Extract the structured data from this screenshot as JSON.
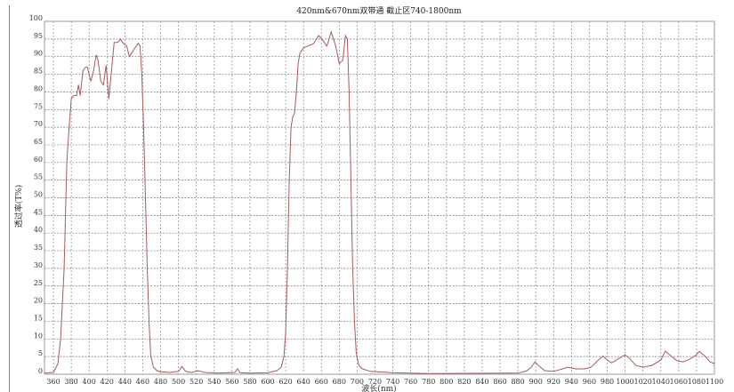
{
  "chart_data": {
    "type": "line",
    "title": "420nm&670nm双带通 截止区740-1800nm",
    "xlabel": "波长(nm)",
    "ylabel": "透过率(T%)",
    "xlim": [
      350,
      1100
    ],
    "ylim": [
      0,
      100
    ],
    "xticks": [
      360,
      380,
      400,
      420,
      440,
      460,
      480,
      500,
      520,
      540,
      560,
      580,
      600,
      620,
      640,
      660,
      680,
      700,
      720,
      740,
      760,
      780,
      800,
      820,
      840,
      860,
      880,
      900,
      920,
      940,
      960,
      980,
      1000,
      1020,
      1040,
      1060,
      1080,
      1100
    ],
    "yticks": [
      0,
      5,
      10,
      15,
      20,
      25,
      30,
      35,
      40,
      45,
      50,
      55,
      60,
      65,
      70,
      75,
      80,
      85,
      90,
      95,
      100
    ],
    "grid": true,
    "line_color": "#a85a5a",
    "series": [
      {
        "x": [
          350,
          360,
          365,
          368,
          372,
          375,
          377,
          380,
          383,
          386,
          388,
          390,
          393,
          396,
          398,
          402,
          405,
          408,
          410,
          413,
          416,
          419,
          422,
          425,
          428,
          432,
          435,
          438,
          442,
          445,
          450,
          455,
          457,
          459,
          461,
          463,
          465,
          467,
          469,
          472,
          476,
          480,
          490,
          500,
          504,
          508,
          515,
          522,
          525,
          530,
          545,
          563,
          566,
          569,
          580,
          600,
          610,
          615,
          618,
          620,
          622,
          624,
          626,
          628,
          630,
          632,
          634,
          636,
          640,
          645,
          650,
          652,
          657,
          662,
          666,
          671,
          676,
          680,
          684,
          687,
          689,
          691,
          693,
          695,
          697,
          699,
          702,
          706,
          715,
          740,
          780,
          880,
          890,
          895,
          899,
          903,
          910,
          920,
          930,
          936,
          945,
          955,
          962,
          970,
          975,
          980,
          985,
          990,
          1000,
          1005,
          1012,
          1020,
          1030,
          1040,
          1045,
          1050,
          1058,
          1065,
          1072,
          1080,
          1083,
          1090,
          1095,
          1100
        ],
        "y": [
          0.3,
          0.5,
          3,
          10,
          30,
          60,
          68,
          78,
          79,
          79,
          82,
          79,
          86,
          87,
          87,
          83,
          86,
          90.5,
          89,
          83,
          82,
          87.5,
          78,
          86,
          94,
          94,
          95,
          93.8,
          93,
          90,
          92,
          93.8,
          93,
          85,
          70,
          50,
          30,
          15,
          5,
          2,
          1,
          0.7,
          0.5,
          0.8,
          2.2,
          0.8,
          0.5,
          1,
          0.8,
          0.5,
          0.3,
          0.5,
          1.5,
          0.4,
          0.3,
          0.4,
          1,
          2,
          5,
          12,
          30,
          55,
          70,
          73,
          74,
          80,
          88,
          91,
          92.5,
          93,
          93.5,
          94,
          96,
          94.5,
          93,
          97,
          93,
          88,
          89,
          96,
          95,
          80,
          55,
          30,
          15,
          6,
          2.5,
          1.5,
          0.8,
          0.4,
          0.2,
          0.3,
          1,
          2,
          3.5,
          2.5,
          1,
          0.8,
          1.5,
          2,
          1.5,
          1.5,
          2,
          4,
          5.2,
          4,
          3.2,
          4,
          5.5,
          4.5,
          2.5,
          2,
          2.5,
          4,
          6.5,
          5.5,
          3.8,
          3.5,
          4.2,
          5.5,
          6.5,
          5,
          3.5,
          3
        ]
      }
    ]
  }
}
